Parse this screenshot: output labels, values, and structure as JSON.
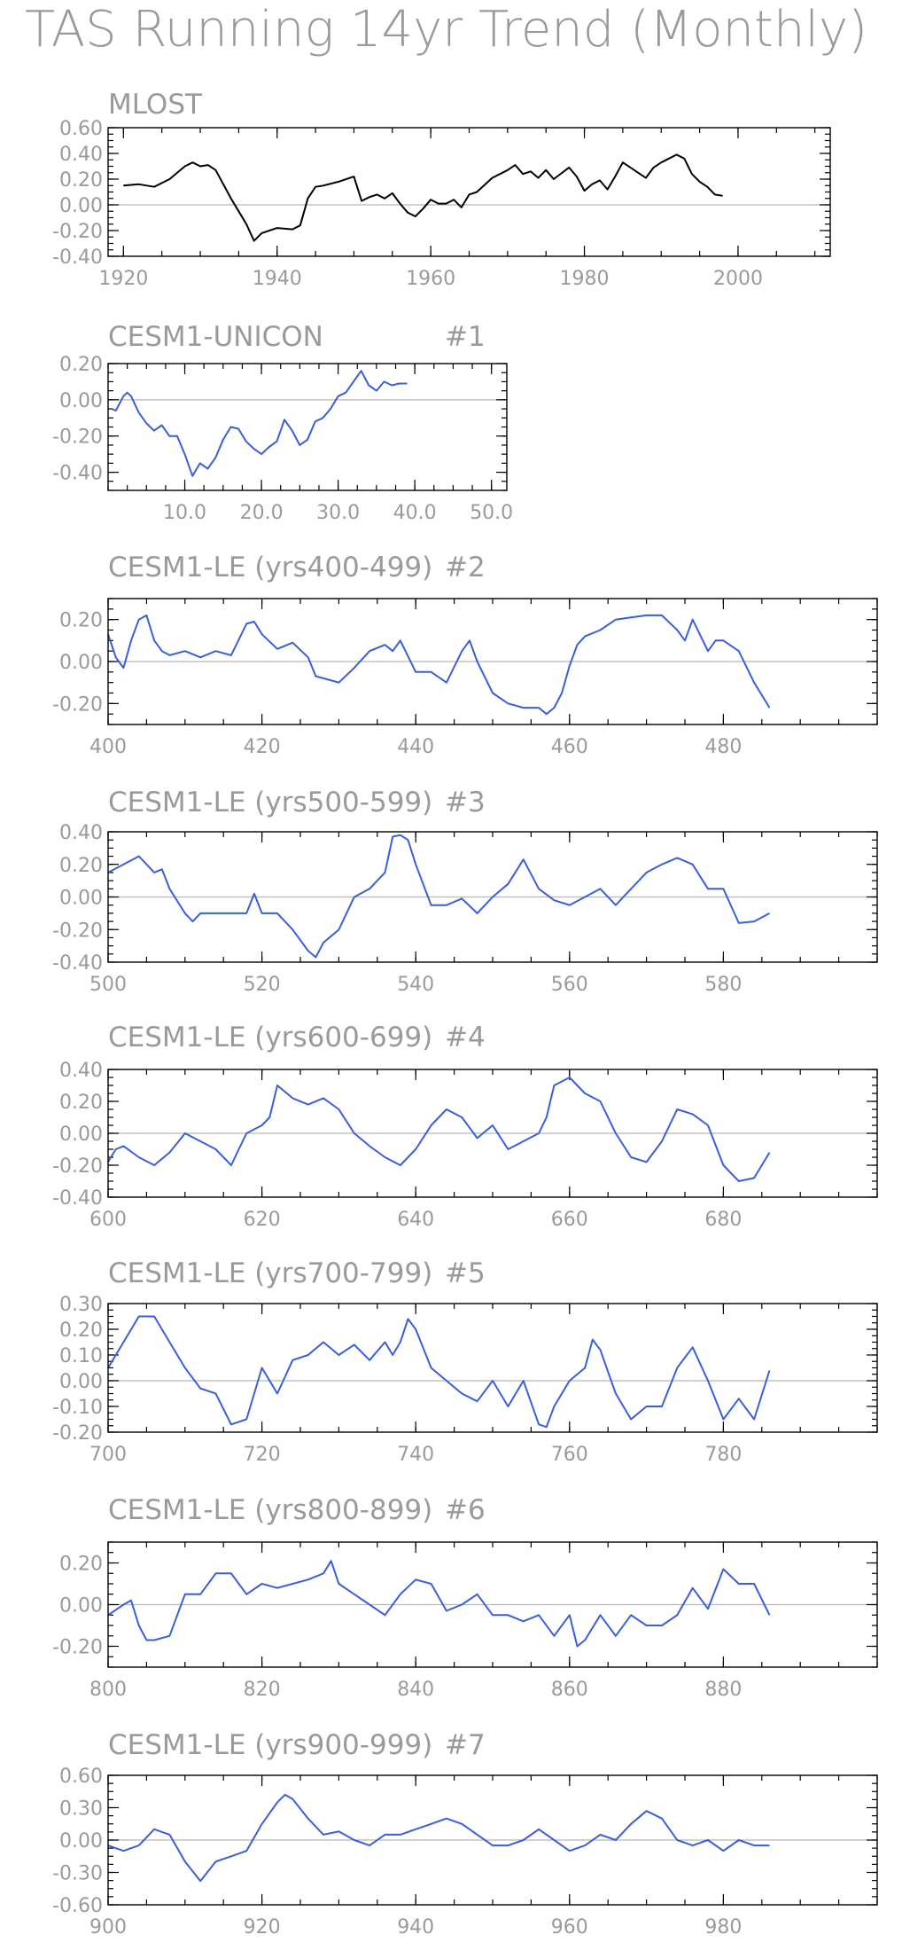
{
  "title": "TAS Running 14yr Trend (Monthly)",
  "colors": {
    "observed": "#000000",
    "model": "#3a5fd9",
    "text": "#9a9a9a",
    "zero": "#b8b8b8"
  },
  "chart_data": [
    {
      "type": "line",
      "title": "MLOST",
      "title_right": "",
      "xlim": [
        1918,
        2012
      ],
      "ylim": [
        -0.4,
        0.6
      ],
      "xticks": [
        1920,
        1940,
        1960,
        1980,
        2000
      ],
      "yticks": [
        -0.4,
        -0.2,
        0.0,
        0.2,
        0.4,
        0.6
      ],
      "x_decimals": 0,
      "y_decimals": 2,
      "color": "#000000",
      "series": [
        {
          "x": [
            1920,
            1922,
            1924,
            1926,
            1928,
            1929,
            1930,
            1931,
            1932,
            1934,
            1936,
            1937,
            1938,
            1940,
            1942,
            1943,
            1944,
            1945,
            1946,
            1948,
            1950,
            1951,
            1952,
            1953,
            1954,
            1955,
            1956,
            1957,
            1958,
            1959,
            1960,
            1961,
            1962,
            1963,
            1964,
            1965,
            1966,
            1968,
            1970,
            1971,
            1972,
            1973,
            1974,
            1975,
            1976,
            1978,
            1979,
            1980,
            1981,
            1982,
            1983,
            1984,
            1985,
            1986,
            1987,
            1988,
            1989,
            1990,
            1991,
            1992,
            1993,
            1994,
            1995,
            1996,
            1997,
            1998
          ],
          "values": [
            0.15,
            0.16,
            0.14,
            0.2,
            0.3,
            0.33,
            0.3,
            0.31,
            0.27,
            0.05,
            -0.15,
            -0.28,
            -0.22,
            -0.18,
            -0.19,
            -0.16,
            0.05,
            0.14,
            0.15,
            0.18,
            0.22,
            0.03,
            0.06,
            0.08,
            0.05,
            0.09,
            0.01,
            -0.06,
            -0.09,
            -0.03,
            0.04,
            0.01,
            0.01,
            0.04,
            -0.02,
            0.08,
            0.1,
            0.21,
            0.27,
            0.31,
            0.24,
            0.26,
            0.21,
            0.27,
            0.2,
            0.29,
            0.22,
            0.11,
            0.16,
            0.19,
            0.12,
            0.22,
            0.33,
            0.29,
            0.25,
            0.21,
            0.29,
            0.33,
            0.36,
            0.39,
            0.36,
            0.24,
            0.18,
            0.14,
            0.08,
            0.07
          ]
        }
      ]
    },
    {
      "type": "line",
      "title": "CESM1-UNICON",
      "title_right": "#1",
      "xlim": [
        0,
        52
      ],
      "ylim": [
        -0.5,
        0.2
      ],
      "xticks": [
        10,
        20,
        30,
        40,
        50
      ],
      "yticks": [
        -0.4,
        -0.2,
        0.0,
        0.2
      ],
      "x_decimals": 1,
      "y_decimals": 2,
      "color": "#3a5fd9",
      "series": [
        {
          "x": [
            0.5,
            1,
            2,
            2.5,
            3,
            4,
            5,
            6,
            7,
            8,
            9,
            10,
            11,
            12,
            13,
            14,
            15,
            16,
            17,
            18,
            19,
            20,
            21,
            22,
            23,
            24,
            25,
            26,
            27,
            28,
            29,
            30,
            31,
            32,
            33,
            34,
            35,
            36,
            37,
            38,
            39
          ],
          "values": [
            -0.05,
            -0.06,
            0.02,
            0.04,
            0.02,
            -0.07,
            -0.13,
            -0.17,
            -0.14,
            -0.2,
            -0.2,
            -0.3,
            -0.42,
            -0.35,
            -0.38,
            -0.32,
            -0.22,
            -0.15,
            -0.16,
            -0.23,
            -0.27,
            -0.3,
            -0.26,
            -0.23,
            -0.11,
            -0.17,
            -0.25,
            -0.22,
            -0.12,
            -0.1,
            -0.05,
            0.02,
            0.04,
            0.1,
            0.16,
            0.08,
            0.05,
            0.1,
            0.08,
            0.09,
            0.09
          ]
        }
      ]
    },
    {
      "type": "line",
      "title": "CESM1-LE (yrs400-499)",
      "title_right": "#2",
      "xlim": [
        400,
        500
      ],
      "ylim": [
        -0.3,
        0.3
      ],
      "xticks": [
        400,
        420,
        440,
        460,
        480
      ],
      "yticks": [
        -0.2,
        0.0,
        0.2
      ],
      "x_decimals": 0,
      "y_decimals": 2,
      "color": "#3a5fd9",
      "series": [
        {
          "x": [
            400,
            401,
            402,
            403,
            404,
            405,
            406,
            407,
            408,
            410,
            412,
            414,
            416,
            418,
            419,
            420,
            422,
            424,
            426,
            427,
            428,
            430,
            432,
            434,
            436,
            437,
            438,
            440,
            442,
            444,
            446,
            447,
            448,
            450,
            452,
            454,
            456,
            457,
            458,
            459,
            460,
            461,
            462,
            464,
            466,
            468,
            470,
            472,
            474,
            475,
            476,
            478,
            479,
            480,
            482,
            484,
            486
          ],
          "values": [
            0.13,
            0.02,
            -0.03,
            0.1,
            0.2,
            0.22,
            0.1,
            0.05,
            0.03,
            0.05,
            0.02,
            0.05,
            0.03,
            0.18,
            0.19,
            0.13,
            0.06,
            0.09,
            0.02,
            -0.07,
            -0.08,
            -0.1,
            -0.03,
            0.05,
            0.08,
            0.05,
            0.1,
            -0.05,
            -0.05,
            -0.1,
            0.05,
            0.1,
            0.0,
            -0.15,
            -0.2,
            -0.22,
            -0.22,
            -0.25,
            -0.22,
            -0.15,
            -0.02,
            0.08,
            0.12,
            0.15,
            0.2,
            0.21,
            0.22,
            0.22,
            0.15,
            0.1,
            0.2,
            0.05,
            0.1,
            0.1,
            0.05,
            -0.1,
            -0.22
          ]
        }
      ]
    },
    {
      "type": "line",
      "title": "CESM1-LE (yrs500-599)",
      "title_right": "#3",
      "xlim": [
        500,
        600
      ],
      "ylim": [
        -0.4,
        0.4
      ],
      "xticks": [
        500,
        520,
        540,
        560,
        580
      ],
      "yticks": [
        -0.4,
        -0.2,
        0.0,
        0.2,
        0.4
      ],
      "x_decimals": 0,
      "y_decimals": 2,
      "color": "#3a5fd9",
      "series": [
        {
          "x": [
            500,
            502,
            504,
            506,
            507,
            508,
            510,
            511,
            512,
            514,
            516,
            518,
            519,
            520,
            522,
            524,
            526,
            527,
            528,
            530,
            532,
            534,
            536,
            537,
            538,
            539,
            540,
            542,
            544,
            546,
            548,
            550,
            552,
            554,
            556,
            558,
            560,
            562,
            564,
            566,
            568,
            570,
            572,
            574,
            575,
            576,
            578,
            580,
            582,
            584,
            586
          ],
          "values": [
            0.15,
            0.2,
            0.25,
            0.15,
            0.17,
            0.05,
            -0.1,
            -0.15,
            -0.1,
            -0.1,
            -0.1,
            -0.1,
            0.02,
            -0.1,
            -0.1,
            -0.2,
            -0.33,
            -0.37,
            -0.28,
            -0.2,
            0.0,
            0.05,
            0.15,
            0.37,
            0.38,
            0.35,
            0.2,
            -0.05,
            -0.05,
            -0.01,
            -0.1,
            0.0,
            0.08,
            0.23,
            0.05,
            -0.02,
            -0.05,
            0.0,
            0.05,
            -0.05,
            0.05,
            0.15,
            0.2,
            0.24,
            0.22,
            0.2,
            0.05,
            0.05,
            -0.16,
            -0.15,
            -0.1
          ]
        }
      ]
    },
    {
      "type": "line",
      "title": "CESM1-LE (yrs600-699)",
      "title_right": "#4",
      "xlim": [
        600,
        700
      ],
      "ylim": [
        -0.4,
        0.4
      ],
      "xticks": [
        600,
        620,
        640,
        660,
        680
      ],
      "yticks": [
        -0.4,
        -0.2,
        0.0,
        0.2,
        0.4
      ],
      "x_decimals": 0,
      "y_decimals": 2,
      "color": "#3a5fd9",
      "series": [
        {
          "x": [
            600,
            601,
            602,
            604,
            606,
            608,
            610,
            612,
            614,
            616,
            618,
            620,
            621,
            622,
            624,
            626,
            628,
            630,
            632,
            634,
            636,
            638,
            640,
            642,
            644,
            646,
            648,
            650,
            652,
            654,
            656,
            657,
            658,
            660,
            662,
            664,
            666,
            668,
            670,
            672,
            674,
            676,
            678,
            680,
            682,
            684,
            686
          ],
          "values": [
            -0.18,
            -0.1,
            -0.08,
            -0.15,
            -0.2,
            -0.12,
            0.0,
            -0.05,
            -0.1,
            -0.2,
            0.0,
            0.05,
            0.1,
            0.3,
            0.22,
            0.18,
            0.22,
            0.15,
            0.0,
            -0.08,
            -0.15,
            -0.2,
            -0.1,
            0.05,
            0.15,
            0.1,
            -0.03,
            0.05,
            -0.1,
            -0.05,
            0.0,
            0.1,
            0.3,
            0.35,
            0.25,
            0.2,
            0.0,
            -0.15,
            -0.18,
            -0.05,
            0.15,
            0.12,
            0.05,
            -0.2,
            -0.3,
            -0.28,
            -0.12
          ]
        }
      ]
    },
    {
      "type": "line",
      "title": "CESM1-LE (yrs700-799)",
      "title_right": "#5",
      "xlim": [
        700,
        800
      ],
      "ylim": [
        -0.2,
        0.3
      ],
      "xticks": [
        700,
        720,
        740,
        760,
        780
      ],
      "yticks": [
        -0.2,
        -0.1,
        0.0,
        0.1,
        0.2,
        0.3
      ],
      "x_decimals": 0,
      "y_decimals": 2,
      "color": "#3a5fd9",
      "series": [
        {
          "x": [
            700,
            702,
            704,
            706,
            708,
            710,
            712,
            714,
            716,
            718,
            720,
            722,
            724,
            726,
            728,
            730,
            732,
            734,
            736,
            737,
            738,
            739,
            740,
            742,
            744,
            746,
            748,
            750,
            752,
            754,
            756,
            757,
            758,
            760,
            762,
            763,
            764,
            766,
            768,
            770,
            772,
            774,
            776,
            778,
            780,
            782,
            784,
            786
          ],
          "values": [
            0.05,
            0.15,
            0.25,
            0.25,
            0.15,
            0.05,
            -0.03,
            -0.05,
            -0.17,
            -0.15,
            0.05,
            -0.05,
            0.08,
            0.1,
            0.15,
            0.1,
            0.14,
            0.08,
            0.15,
            0.1,
            0.15,
            0.24,
            0.2,
            0.05,
            0.0,
            -0.05,
            -0.08,
            0.0,
            -0.1,
            0.0,
            -0.17,
            -0.18,
            -0.1,
            0.0,
            0.05,
            0.16,
            0.12,
            -0.05,
            -0.15,
            -0.1,
            -0.1,
            0.05,
            0.13,
            0.0,
            -0.15,
            -0.07,
            -0.15,
            0.04
          ]
        }
      ]
    },
    {
      "type": "line",
      "title": "CESM1-LE (yrs800-899)",
      "title_right": "#6",
      "xlim": [
        800,
        900
      ],
      "ylim": [
        -0.3,
        0.3
      ],
      "xticks": [
        800,
        820,
        840,
        860,
        880
      ],
      "yticks": [
        -0.2,
        0.0,
        0.2
      ],
      "x_decimals": 0,
      "y_decimals": 2,
      "color": "#3a5fd9",
      "series": [
        {
          "x": [
            800,
            802,
            803,
            804,
            805,
            806,
            808,
            810,
            812,
            814,
            816,
            818,
            820,
            822,
            824,
            826,
            828,
            829,
            830,
            832,
            834,
            836,
            838,
            840,
            842,
            844,
            846,
            848,
            850,
            852,
            854,
            856,
            858,
            860,
            861,
            862,
            864,
            866,
            868,
            870,
            872,
            874,
            876,
            878,
            880,
            882,
            884,
            886
          ],
          "values": [
            -0.05,
            0.0,
            0.02,
            -0.1,
            -0.17,
            -0.17,
            -0.15,
            0.05,
            0.05,
            0.15,
            0.15,
            0.05,
            0.1,
            0.08,
            0.1,
            0.12,
            0.15,
            0.21,
            0.1,
            0.05,
            0.0,
            -0.05,
            0.05,
            0.12,
            0.1,
            -0.03,
            0.0,
            0.05,
            -0.05,
            -0.05,
            -0.08,
            -0.05,
            -0.15,
            -0.05,
            -0.2,
            -0.17,
            -0.05,
            -0.15,
            -0.05,
            -0.1,
            -0.1,
            -0.05,
            0.08,
            -0.02,
            0.17,
            0.1,
            0.1,
            -0.05
          ]
        }
      ]
    },
    {
      "type": "line",
      "title": "CESM1-LE (yrs900-999)",
      "title_right": "#7",
      "xlim": [
        900,
        1000
      ],
      "ylim": [
        -0.6,
        0.6
      ],
      "xticks": [
        900,
        920,
        940,
        960,
        980
      ],
      "yticks": [
        -0.6,
        -0.3,
        0.0,
        0.3,
        0.6
      ],
      "x_decimals": 0,
      "y_decimals": 2,
      "color": "#3a5fd9",
      "series": [
        {
          "x": [
            900,
            902,
            904,
            906,
            908,
            910,
            912,
            914,
            916,
            918,
            920,
            922,
            923,
            924,
            926,
            928,
            930,
            932,
            934,
            936,
            938,
            940,
            942,
            944,
            946,
            948,
            950,
            952,
            954,
            956,
            958,
            960,
            962,
            964,
            966,
            968,
            970,
            972,
            974,
            976,
            978,
            980,
            982,
            984,
            986
          ],
          "values": [
            -0.05,
            -0.1,
            -0.05,
            0.1,
            0.05,
            -0.2,
            -0.38,
            -0.2,
            -0.15,
            -0.1,
            0.15,
            0.35,
            0.42,
            0.38,
            0.2,
            0.05,
            0.08,
            0.0,
            -0.05,
            0.05,
            0.05,
            0.1,
            0.15,
            0.2,
            0.15,
            0.05,
            -0.05,
            -0.05,
            0.0,
            0.1,
            0.0,
            -0.1,
            -0.05,
            0.05,
            0.0,
            0.15,
            0.27,
            0.2,
            0.0,
            -0.05,
            0.0,
            -0.1,
            0.0,
            -0.05,
            -0.05
          ]
        }
      ]
    }
  ]
}
